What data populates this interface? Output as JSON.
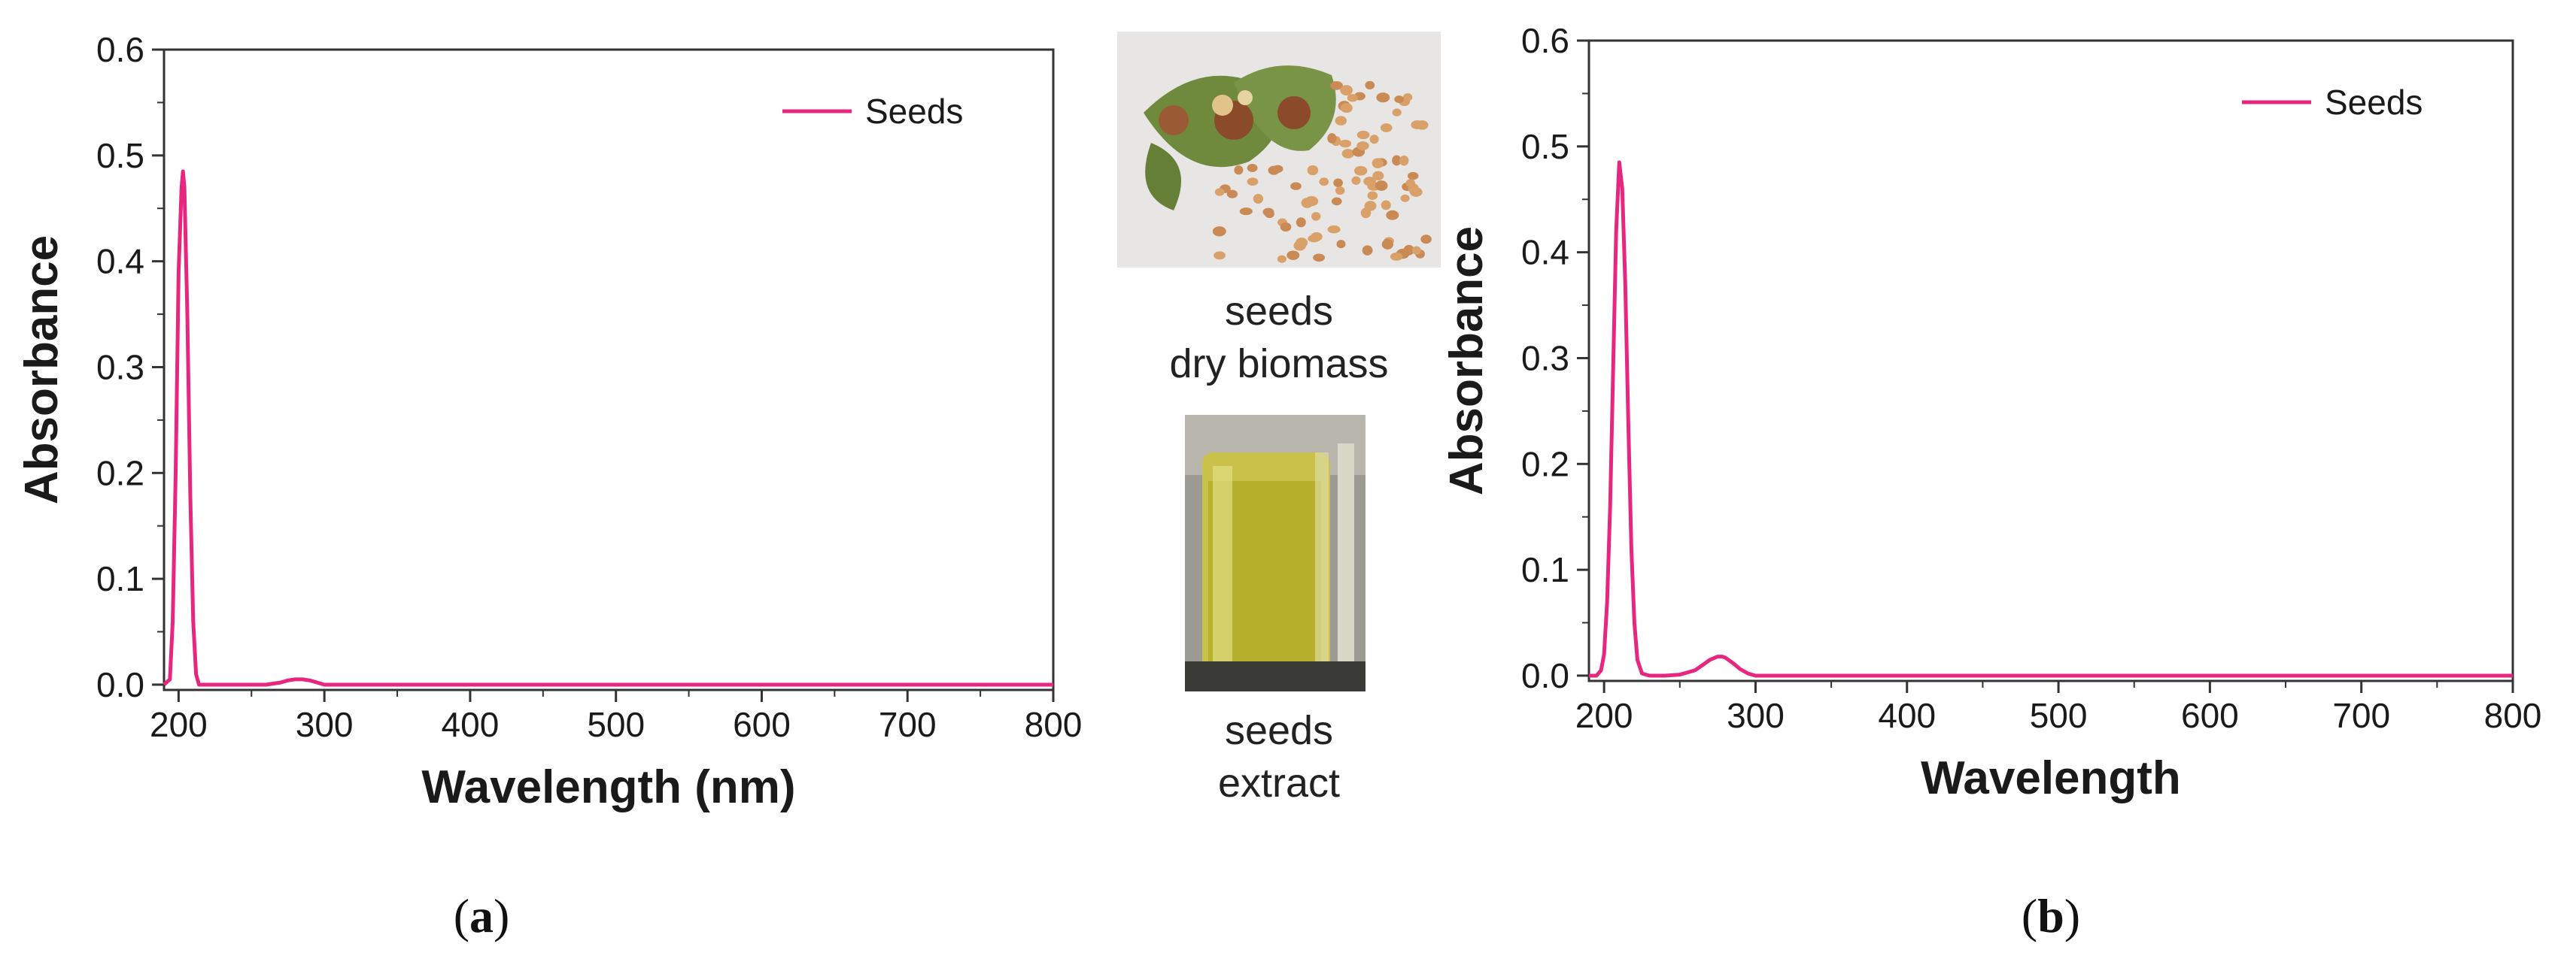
{
  "chart_data": [
    {
      "type": "line",
      "panel": "a",
      "xlabel": "Wavelength (nm)",
      "ylabel": "Absorbance",
      "xlim": [
        190,
        800
      ],
      "ylim": [
        -0.005,
        0.6
      ],
      "xticks": [
        200,
        300,
        400,
        500,
        600,
        700,
        800
      ],
      "yticks": [
        0.0,
        0.1,
        0.2,
        0.3,
        0.4,
        0.5,
        0.6
      ],
      "ytick_labels": [
        "0.0",
        "0.1",
        "0.2",
        "0.3",
        "0.4",
        "0.5",
        "0.6"
      ],
      "legend_position": "top-right",
      "series": [
        {
          "name": "Seeds",
          "color": "#e6267f",
          "x": [
            190,
            194,
            196,
            198,
            200,
            202,
            203,
            204,
            206,
            208,
            210,
            212,
            214,
            218,
            240,
            260,
            270,
            275,
            280,
            285,
            290,
            295,
            300,
            320,
            400,
            500,
            600,
            700,
            800
          ],
          "y": [
            0.0,
            0.005,
            0.06,
            0.2,
            0.39,
            0.47,
            0.485,
            0.47,
            0.35,
            0.18,
            0.06,
            0.01,
            0.0,
            0.0,
            0.0,
            0.0,
            0.002,
            0.004,
            0.005,
            0.005,
            0.004,
            0.002,
            0.0,
            0.0,
            0.0,
            0.0,
            0.0,
            0.0,
            0.0
          ]
        }
      ]
    },
    {
      "type": "line",
      "panel": "b",
      "xlabel": "Wavelength",
      "ylabel": "Absorbance",
      "xlim": [
        190,
        800
      ],
      "ylim": [
        -0.005,
        0.6
      ],
      "xticks": [
        200,
        300,
        400,
        500,
        600,
        700,
        800
      ],
      "yticks": [
        0.0,
        0.1,
        0.2,
        0.3,
        0.4,
        0.5,
        0.6
      ],
      "ytick_labels": [
        "0.0",
        "0.1",
        "0.2",
        "0.3",
        "0.4",
        "0.5",
        "0.6"
      ],
      "legend_position": "top-right",
      "series": [
        {
          "name": "Seeds",
          "color": "#e6267f",
          "x": [
            190,
            195,
            198,
            200,
            202,
            204,
            206,
            208,
            210,
            212,
            214,
            216,
            218,
            220,
            222,
            225,
            230,
            240,
            250,
            260,
            265,
            270,
            275,
            278,
            280,
            285,
            290,
            295,
            300,
            305,
            310,
            400,
            500,
            600,
            700,
            800
          ],
          "y": [
            0.0,
            0.0,
            0.005,
            0.02,
            0.07,
            0.16,
            0.29,
            0.42,
            0.485,
            0.46,
            0.37,
            0.24,
            0.12,
            0.05,
            0.015,
            0.002,
            0.0,
            0.0,
            0.001,
            0.005,
            0.01,
            0.015,
            0.018,
            0.018,
            0.017,
            0.012,
            0.006,
            0.002,
            0.0,
            0.0,
            0.0,
            0.0,
            0.0,
            0.0,
            0.0,
            0.0
          ]
        }
      ]
    }
  ],
  "panel_labels": {
    "a": "(a)",
    "b": "(b)",
    "a_letter": "a",
    "b_letter": "b"
  },
  "captions": {
    "dry_line1": "seeds",
    "dry_line2": "dry biomass",
    "extract_line1": "seeds",
    "extract_line2": "extract"
  },
  "photos": {
    "dry_biomass": "photo of seeds and seed pods (dry biomass)",
    "extract": "photo of yellow seed extract in a glass beaker"
  }
}
